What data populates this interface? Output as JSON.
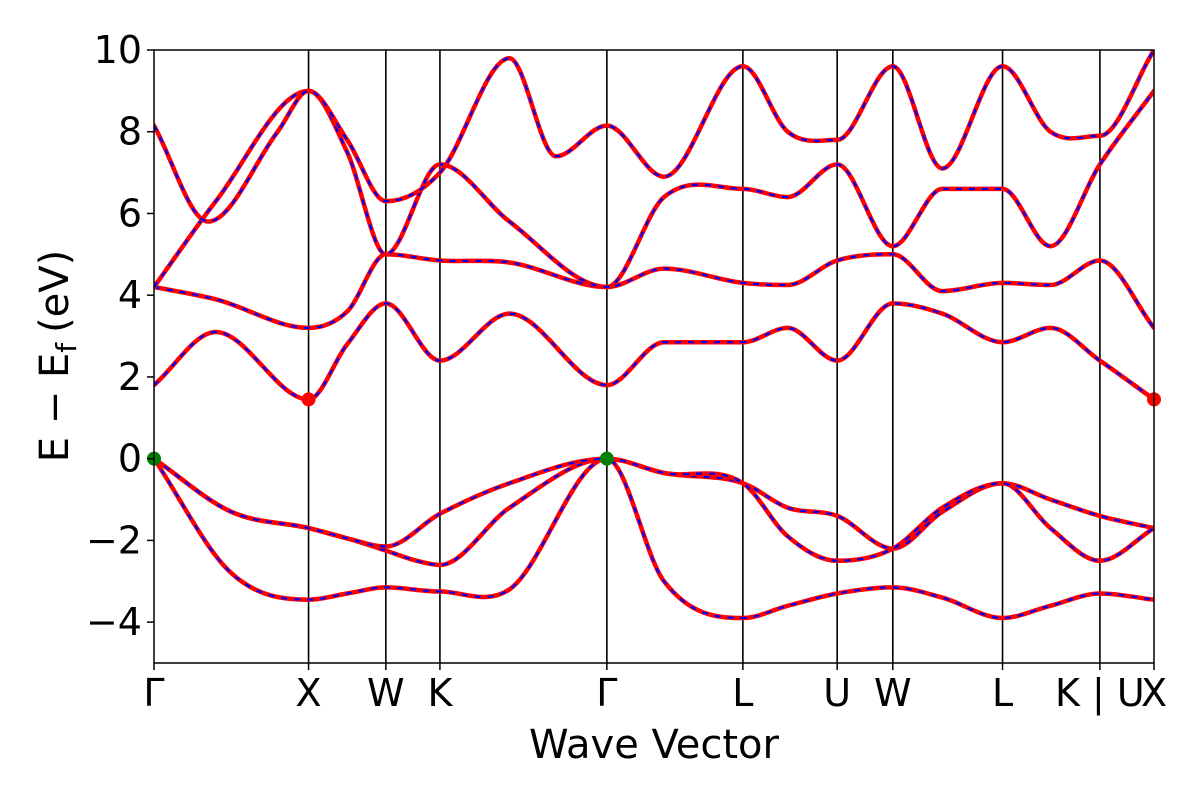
{
  "chart_data": {
    "type": "line",
    "title": "",
    "xlabel": "Wave Vector",
    "ylabel": "E − E",
    "ylabel_sub": "f",
    "ylabel_unit": "(eV)",
    "ylim": [
      -5,
      10
    ],
    "yticks": [
      -4,
      -2,
      0,
      2,
      4,
      6,
      8,
      10
    ],
    "ytick_labels": [
      "−4",
      "−2",
      "0",
      "2",
      "4",
      "6",
      "8",
      "10"
    ],
    "grid": false,
    "kpath": {
      "positions": [
        0,
        1.0,
        1.5,
        1.85,
        2.93,
        3.81,
        4.42,
        4.78,
        5.49,
        6.12,
        6.47
      ],
      "labels": [
        "Γ",
        "X",
        "W",
        "K",
        "Γ",
        "L",
        "U",
        "W",
        "L",
        "K | U",
        "X"
      ]
    },
    "colors": {
      "red_series": "#ff0000",
      "blue_series": "#0000ff",
      "vbm_marker": "#008000",
      "cbm_marker": "#ff0000"
    },
    "series": [
      {
        "x": [
          0,
          0.5,
          1.0,
          1.25,
          1.5,
          1.85,
          2.3,
          2.93,
          3.3,
          3.81,
          4.1,
          4.42,
          4.78,
          5.1,
          5.49,
          5.8,
          6.12,
          6.47
        ],
        "values": [
          0,
          -2.8,
          -3.45,
          -3.3,
          -3.15,
          -3.25,
          -3.2,
          0,
          -3.0,
          -3.9,
          -3.6,
          -3.3,
          -3.15,
          -3.4,
          -3.9,
          -3.6,
          -3.3,
          -3.45
        ]
      },
      {
        "x": [
          0,
          0.5,
          1.0,
          1.25,
          1.5,
          1.7,
          1.85,
          2.3,
          2.93,
          3.3,
          3.81,
          4.1,
          4.42,
          4.78,
          5.1,
          5.49,
          5.8,
          6.12,
          6.47
        ],
        "values": [
          0,
          -1.3,
          -1.7,
          -1.95,
          -2.25,
          -2.5,
          -2.6,
          -1.2,
          0,
          -0.35,
          -0.6,
          -1.2,
          -1.4,
          -2.2,
          -1.3,
          -0.6,
          -1.0,
          -1.4,
          -1.7
        ]
      },
      {
        "x": [
          0,
          0.5,
          1.0,
          1.25,
          1.5,
          1.85,
          2.3,
          2.93,
          3.3,
          3.81,
          4.1,
          4.42,
          4.78,
          5.1,
          5.49,
          5.8,
          6.12,
          6.47
        ],
        "values": [
          0,
          -1.3,
          -1.7,
          -1.95,
          -2.15,
          -1.35,
          -0.6,
          0,
          -0.35,
          -0.6,
          -1.9,
          -2.5,
          -2.2,
          -1.2,
          -0.6,
          -1.7,
          -2.5,
          -1.7
        ]
      },
      {
        "x": [
          0,
          0.4,
          1.0,
          1.25,
          1.5,
          1.85,
          2.3,
          2.93,
          3.3,
          3.81,
          4.1,
          4.42,
          4.78,
          5.1,
          5.49,
          5.8,
          6.12,
          6.47
        ],
        "values": [
          1.8,
          3.1,
          1.45,
          2.8,
          3.8,
          2.4,
          3.55,
          1.8,
          2.85,
          2.85,
          3.2,
          2.4,
          3.8,
          3.55,
          2.85,
          3.2,
          2.4,
          1.45
        ]
      },
      {
        "x": [
          0,
          0.4,
          1.0,
          1.25,
          1.5,
          1.85,
          2.3,
          2.93,
          3.3,
          3.81,
          4.1,
          4.42,
          4.78,
          5.1,
          5.49,
          5.8,
          6.12,
          6.47
        ],
        "values": [
          4.2,
          3.9,
          3.2,
          3.6,
          5.0,
          4.85,
          4.8,
          4.2,
          4.65,
          4.3,
          4.25,
          4.85,
          5.0,
          4.1,
          4.3,
          4.25,
          4.85,
          3.2
        ]
      },
      {
        "x": [
          0,
          0.4,
          1.0,
          1.25,
          1.5,
          1.85,
          2.3,
          2.93,
          3.3,
          3.81,
          4.1,
          4.42,
          4.78,
          5.1,
          5.49,
          5.8,
          6.12,
          6.47
        ],
        "values": [
          4.2,
          6.3,
          9.0,
          7.5,
          5.0,
          7.2,
          5.8,
          4.2,
          6.4,
          6.6,
          6.4,
          7.2,
          5.2,
          6.6,
          6.6,
          5.2,
          7.2,
          9.0
        ]
      },
      {
        "x": [
          0,
          0.35,
          0.8,
          1.0,
          1.25,
          1.5,
          1.85,
          2.3,
          2.6,
          2.93,
          3.3,
          3.81,
          4.1,
          4.42,
          4.78,
          5.1,
          5.49,
          5.8,
          6.12,
          6.47
        ],
        "values": [
          8.15,
          5.8,
          8.0,
          9.0,
          7.8,
          6.3,
          7.0,
          9.8,
          7.4,
          8.15,
          6.9,
          9.6,
          8.0,
          7.8,
          9.6,
          7.1,
          9.6,
          8.0,
          7.9,
          10.0
        ]
      }
    ],
    "markers": [
      {
        "x": 0,
        "y": 0,
        "color": "vbm"
      },
      {
        "x": 2.93,
        "y": 0,
        "color": "vbm"
      },
      {
        "x": 1.0,
        "y": 1.45,
        "color": "cbm"
      },
      {
        "x": 6.47,
        "y": 1.45,
        "color": "cbm"
      }
    ]
  }
}
